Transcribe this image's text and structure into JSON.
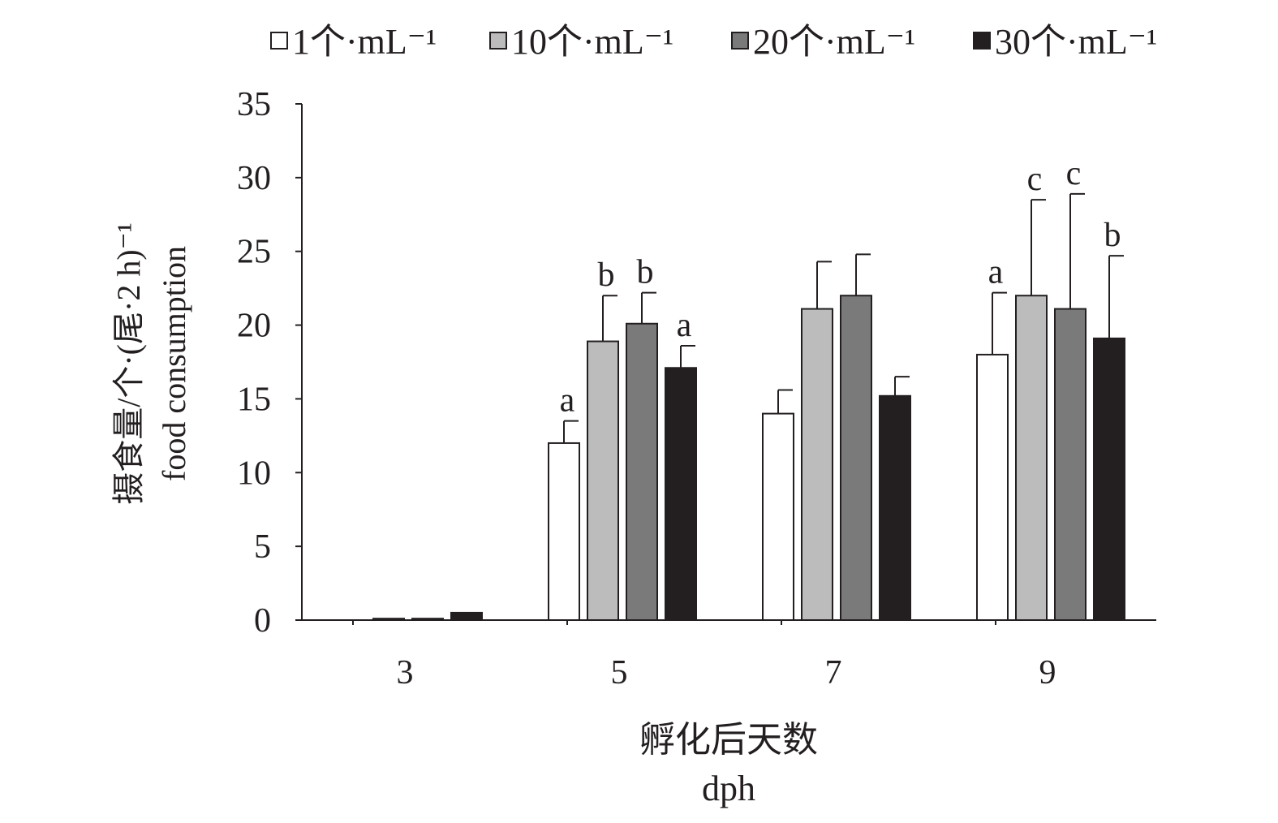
{
  "chart_data": {
    "type": "bar",
    "categories": [
      "3",
      "5",
      "7",
      "9"
    ],
    "xlabel_cn": "孵化后天数",
    "xlabel_en": "dph",
    "ylabel_cn": "摄食量/个·(尾·2 h)⁻¹",
    "ylabel_en": "food consumption",
    "ylim": [
      0,
      35
    ],
    "yticks": [
      "0",
      "5",
      "10",
      "15",
      "20",
      "25",
      "30",
      "35"
    ],
    "legend_position": "top",
    "series": [
      {
        "name": "1个·mL⁻¹",
        "color": "#ffffff",
        "values": [
          0,
          12,
          14,
          18
        ],
        "errors": [
          0,
          1.5,
          1.6,
          4.2
        ],
        "letters": [
          "",
          "a",
          "",
          "a"
        ]
      },
      {
        "name": "10个·mL⁻¹",
        "color": "#bcbcbc",
        "values": [
          0.1,
          18.9,
          21.1,
          22
        ],
        "errors": [
          0,
          3.1,
          3.2,
          6.5
        ],
        "letters": [
          "",
          "b",
          "",
          "c"
        ]
      },
      {
        "name": "20个·mL⁻¹",
        "color": "#7a7a7a",
        "values": [
          0.1,
          20.1,
          22,
          21.1
        ],
        "errors": [
          0,
          2.1,
          2.8,
          7.8
        ],
        "letters": [
          "",
          "b",
          "",
          "c"
        ]
      },
      {
        "name": "30个·mL⁻¹",
        "color": "#231f20",
        "values": [
          0.5,
          17.1,
          15.2,
          19.1
        ],
        "errors": [
          0,
          1.5,
          1.3,
          5.6
        ],
        "letters": [
          "",
          "a",
          "",
          "b"
        ]
      }
    ]
  }
}
